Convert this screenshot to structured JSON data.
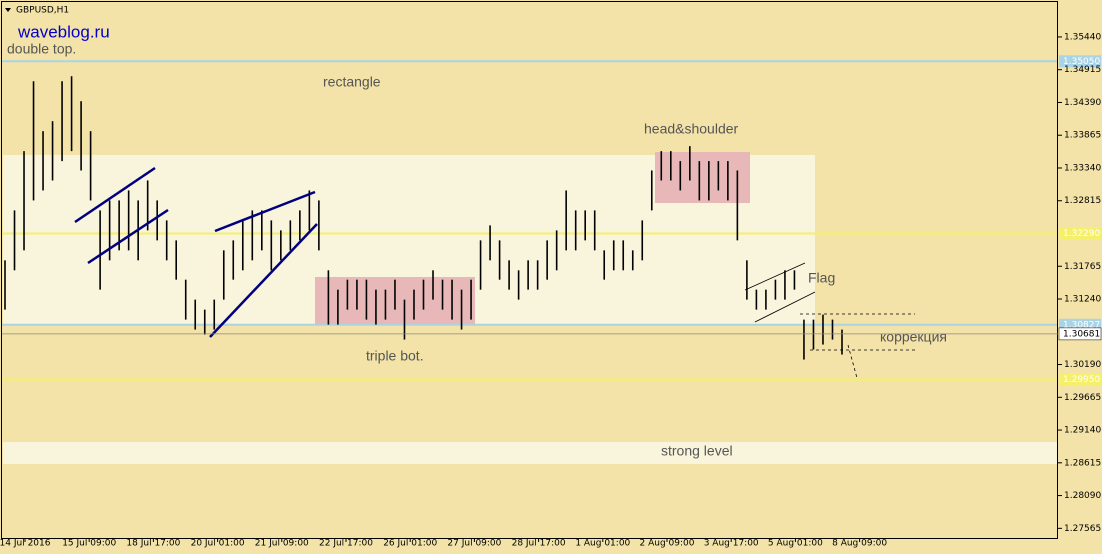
{
  "chart_data": {
    "type": "ohlc-bars",
    "title": "GBPUSD,H1",
    "watermark": "waveblog.ru",
    "ylim": [
      1.2741,
      1.36
    ],
    "yticks": [
      {
        "value": 1.3544,
        "label": "1.35440"
      },
      {
        "value": 1.34915,
        "label": "1.34915"
      },
      {
        "value": 1.3439,
        "label": "1.34390"
      },
      {
        "value": 1.33865,
        "label": "1.33865"
      },
      {
        "value": 1.3334,
        "label": "1.33340"
      },
      {
        "value": 1.32815,
        "label": "1.32815"
      },
      {
        "value": 1.31765,
        "label": "1.31765"
      },
      {
        "value": 1.3124,
        "label": "1.31240"
      },
      {
        "value": 1.3019,
        "label": "1.30190"
      },
      {
        "value": 1.29665,
        "label": "1.29665"
      },
      {
        "value": 1.2914,
        "label": "1.29140"
      },
      {
        "value": 1.28615,
        "label": "1.28615"
      },
      {
        "value": 1.2809,
        "label": "1.28090"
      },
      {
        "value": 1.27565,
        "label": "1.27565"
      }
    ],
    "current_price": {
      "value": 1.30681,
      "label": "1.30681"
    },
    "levels": [
      {
        "value": 1.3505,
        "label": "1.35050",
        "color": "#a9d4e6"
      },
      {
        "value": 1.3229,
        "label": "1.32290",
        "color": "#f5f06a"
      },
      {
        "value": 1.30827,
        "label": "1.30827",
        "color": "#a9d4e6"
      },
      {
        "value": 1.2995,
        "label": "1.29950",
        "color": "#f5f06a"
      }
    ],
    "x_labels": [
      "14 Jul 2016",
      "15 Jul 09:00",
      "18 Jul 17:00",
      "20 Jul 01:00",
      "21 Jul 09:00",
      "22 Jul 17:00",
      "26 Jul 01:00",
      "27 Jul 09:00",
      "28 Jul 17:00",
      "1 Aug 01:00",
      "2 Aug 09:00",
      "3 Aug 17:00",
      "5 Aug 01:00",
      "8 Aug 09:00"
    ],
    "annotations": [
      "double top.",
      "rectangle",
      "head&shoulder",
      "Flag",
      "triple bot.",
      "коррекция",
      "strong level"
    ],
    "high": [
      1.3186,
      1.3266,
      1.3361,
      1.3473,
      1.3393,
      1.3409,
      1.3473,
      1.3481,
      1.3441,
      1.3393,
      1.3266,
      1.3282,
      1.3282,
      1.3298,
      1.3282,
      1.3314,
      1.3282,
      1.325,
      1.3218,
      1.3155,
      1.3123,
      1.3107,
      1.3123,
      1.3202,
      1.3218,
      1.325,
      1.3266,
      1.3266,
      1.325,
      1.3234,
      1.325,
      1.3266,
      1.3298,
      1.3282,
      1.317,
      1.3139,
      1.3155,
      1.3155,
      1.3155,
      1.3139,
      1.3139,
      1.3155,
      1.3123,
      1.3139,
      1.3155,
      1.317,
      1.3155,
      1.3155,
      1.3139,
      1.3155,
      1.3218,
      1.3242,
      1.3218,
      1.3186,
      1.317,
      1.3186,
      1.3186,
      1.3218,
      1.3234,
      1.3298,
      1.3266,
      1.3266,
      1.3266,
      1.3202,
      1.3218,
      1.3218,
      1.3202,
      1.325,
      1.333,
      1.3361,
      1.3361,
      1.3345,
      1.3369,
      1.3345,
      1.3345,
      1.3345,
      1.3345,
      1.333,
      1.3186,
      1.3139,
      1.3139,
      1.3155,
      1.317,
      1.317,
      1.3091,
      1.3091,
      1.3099,
      1.3091,
      1.3075
    ],
    "low": [
      1.3107,
      1.317,
      1.3202,
      1.3282,
      1.3298,
      1.3314,
      1.3345,
      1.3361,
      1.333,
      1.3282,
      1.3139,
      1.3186,
      1.3202,
      1.3202,
      1.3186,
      1.3234,
      1.3218,
      1.3186,
      1.3155,
      1.3091,
      1.3075,
      1.3067,
      1.3075,
      1.3123,
      1.3155,
      1.317,
      1.3186,
      1.3202,
      1.317,
      1.3186,
      1.3202,
      1.3218,
      1.3234,
      1.3202,
      1.3083,
      1.3083,
      1.3107,
      1.3107,
      1.3091,
      1.3083,
      1.3091,
      1.3107,
      1.3059,
      1.3091,
      1.3107,
      1.3123,
      1.3107,
      1.3091,
      1.3075,
      1.3091,
      1.3139,
      1.3186,
      1.3155,
      1.3139,
      1.3123,
      1.3139,
      1.3139,
      1.3155,
      1.317,
      1.3202,
      1.3202,
      1.3218,
      1.3202,
      1.3155,
      1.317,
      1.317,
      1.317,
      1.3186,
      1.3266,
      1.3314,
      1.3314,
      1.3298,
      1.3314,
      1.3282,
      1.3282,
      1.3298,
      1.3282,
      1.3218,
      1.3123,
      1.3107,
      1.3107,
      1.3123,
      1.3123,
      1.3139,
      1.3027,
      1.3043,
      1.3051,
      1.3059,
      1.3035
    ]
  }
}
